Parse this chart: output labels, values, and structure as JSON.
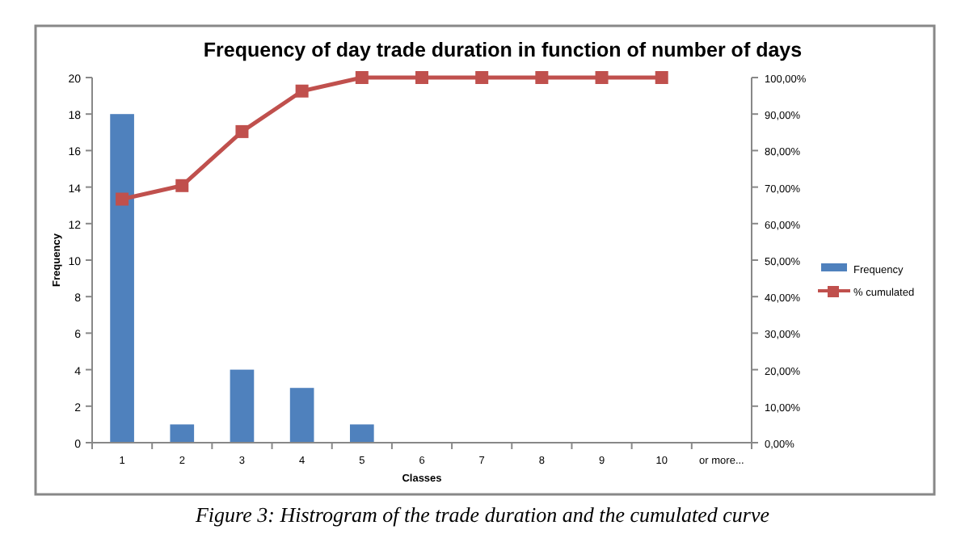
{
  "chart_data": {
    "type": "bar",
    "title": "Frequency of day trade duration in function of number of days",
    "xlabel": "Classes",
    "ylabel": "Frequency",
    "categories": [
      "1",
      "2",
      "3",
      "4",
      "5",
      "6",
      "7",
      "8",
      "9",
      "10",
      "or more..."
    ],
    "series": [
      {
        "name": "Frequency",
        "color": "#4f81bd",
        "values": [
          18,
          1,
          4,
          3,
          1,
          0,
          0,
          0,
          0,
          0,
          0
        ]
      },
      {
        "name": "% cumulated",
        "type": "line",
        "axis": "y2",
        "color": "#c0504d",
        "marker": "square",
        "values": [
          66.7,
          70.4,
          85.2,
          96.3,
          100,
          100,
          100,
          100,
          100,
          100,
          null
        ]
      }
    ],
    "ylim": [
      0,
      20
    ],
    "yticks": [
      0,
      2,
      4,
      6,
      8,
      10,
      12,
      14,
      16,
      18,
      20
    ],
    "y2lim": [
      0,
      100
    ],
    "y2ticks": [
      {
        "value": 0,
        "label": "0,00%"
      },
      {
        "value": 10,
        "label": "10,00%"
      },
      {
        "value": 20,
        "label": "20,00%"
      },
      {
        "value": 30,
        "label": "30,00%"
      },
      {
        "value": 40,
        "label": "40,00%"
      },
      {
        "value": 50,
        "label": "50,00%"
      },
      {
        "value": 60,
        "label": "60,00%"
      },
      {
        "value": 70,
        "label": "70,00%"
      },
      {
        "value": 80,
        "label": "80,00%"
      },
      {
        "value": 90,
        "label": "90,00%"
      },
      {
        "value": 100,
        "label": "100,00%"
      }
    ],
    "legend": "right",
    "grid": false,
    "annotations": [
      "Figure 3: Histrogram of the trade duration and the cumulated curve"
    ]
  }
}
